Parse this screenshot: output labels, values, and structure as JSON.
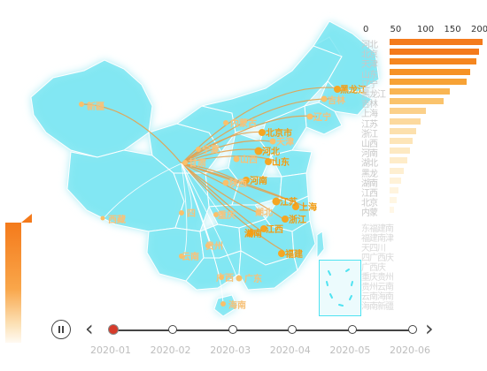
{
  "map": {
    "colors": {
      "land": "#7fe6f2",
      "glow": "#4fe3f1",
      "flow": "#e6a14d",
      "label": "#f39c12"
    },
    "cities": [
      {
        "name": "新疆",
        "style": "light"
      },
      {
        "name": "西藏",
        "style": "light"
      },
      {
        "name": "内蒙古",
        "style": "light"
      },
      {
        "name": "黑龙江",
        "style": "strong"
      },
      {
        "name": "吉林",
        "style": "light"
      },
      {
        "name": "辽宁",
        "style": "light"
      },
      {
        "name": "北京市",
        "style": "strong"
      },
      {
        "name": "天津",
        "style": "light"
      },
      {
        "name": "河北",
        "style": "strong"
      },
      {
        "name": "山东",
        "style": "strong"
      },
      {
        "name": "宁夏",
        "style": "light"
      },
      {
        "name": "甘肃",
        "style": "light"
      },
      {
        "name": "山西",
        "style": "light"
      },
      {
        "name": "河南",
        "style": "strong"
      },
      {
        "name": "陕西",
        "style": "light"
      },
      {
        "name": "江苏",
        "style": "strong"
      },
      {
        "name": "上海",
        "style": "strong"
      },
      {
        "name": "湖北",
        "style": "light"
      },
      {
        "name": "浙江",
        "style": "strong"
      },
      {
        "name": "四",
        "style": "light"
      },
      {
        "name": "重庆",
        "style": "light"
      },
      {
        "name": "湖南",
        "style": "strong"
      },
      {
        "name": "江西",
        "style": "strong"
      },
      {
        "name": "贵州",
        "style": "light"
      },
      {
        "name": "福建",
        "style": "strong"
      },
      {
        "name": "云南",
        "style": "light"
      },
      {
        "name": "广西",
        "style": "light"
      },
      {
        "name": "广东",
        "style": "light"
      },
      {
        "name": "海南",
        "style": "light"
      }
    ]
  },
  "ranking": {
    "axis_ticks": [
      "0",
      "50",
      "100",
      "150",
      "200"
    ],
    "rows": [
      {
        "label": "河北",
        "value": 205,
        "color": "#f47a1b"
      },
      {
        "label": "北京",
        "value": 196,
        "color": "#f47a1b"
      },
      {
        "label": "天津",
        "value": 190,
        "color": "#f5861f"
      },
      {
        "label": "山东",
        "value": 176,
        "color": "#f69224"
      },
      {
        "label": "辽宁",
        "value": 170,
        "color": "#f7a235"
      },
      {
        "label": "黑龙江",
        "value": 132,
        "color": "#f9b552"
      },
      {
        "label": "吉林",
        "value": 118,
        "color": "#fac36c"
      },
      {
        "label": "上海",
        "value": 80,
        "color": "#fbd08a"
      },
      {
        "label": "江苏",
        "value": 68,
        "color": "#fcd99d"
      },
      {
        "label": "浙江",
        "value": 58,
        "color": "#fce0ad"
      },
      {
        "label": "山西",
        "value": 50,
        "color": "#fde5b8"
      },
      {
        "label": "河南",
        "value": 44,
        "color": "#fde9c2"
      },
      {
        "label": "湖北",
        "value": 38,
        "color": "#feecc9"
      },
      {
        "label": "黑龙",
        "value": 32,
        "color": "#feefd1"
      },
      {
        "label": "湖南",
        "value": 26,
        "color": "#fff2d8"
      },
      {
        "label": "江西",
        "value": 20,
        "color": "#fff4de"
      },
      {
        "label": "北京",
        "value": 15,
        "color": "#fff6e3"
      },
      {
        "label": "内蒙",
        "value": 10,
        "color": "#fff7e7"
      }
    ],
    "faint_labels": [
      "东福建南",
      "福建南津",
      "天四川",
      "四广西庆",
      "广西庆",
      "重庆贵州",
      "贵州云南",
      "云南海南",
      "海南新疆"
    ]
  },
  "timeline": {
    "labels": [
      "2020-01",
      "2020-02",
      "2020-03",
      "2020-04",
      "2020-05",
      "2020-06"
    ],
    "active_index": 0
  }
}
